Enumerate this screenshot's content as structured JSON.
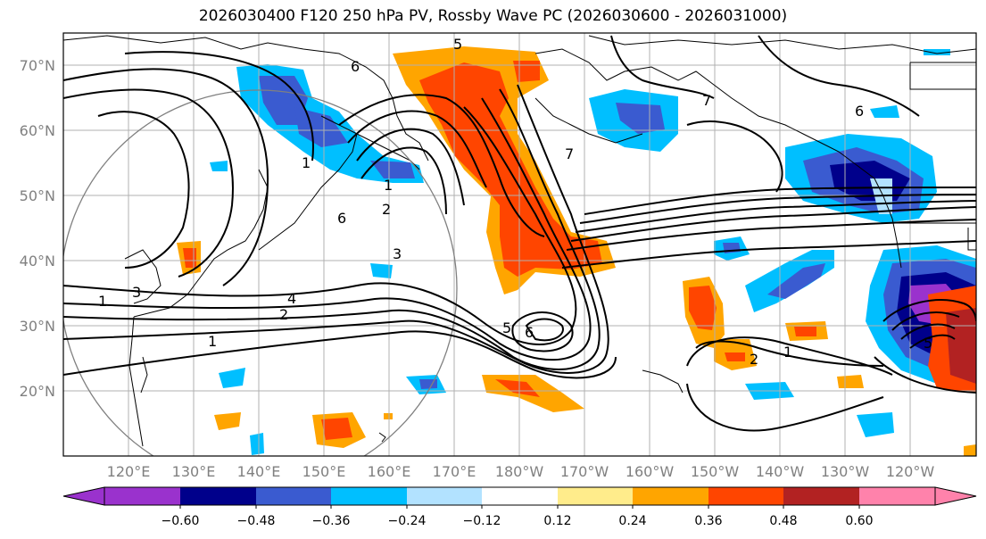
{
  "title": "2026030400 F120 250 hPa PV, Rossby Wave PC (2026030600 - 2026031000)",
  "lat_labels": [
    "70°N",
    "60°N",
    "50°N",
    "40°N",
    "30°N",
    "20°N"
  ],
  "lon_labels": [
    "120°E",
    "130°E",
    "140°E",
    "150°E",
    "160°E",
    "170°E",
    "180°W",
    "170°W",
    "160°W",
    "150°W",
    "140°W",
    "130°W",
    "120°W"
  ],
  "colorbar": {
    "colors": [
      "#9a32cd",
      "#00008b",
      "#3a5bd0",
      "#00bfff",
      "#b2e2ff",
      "#ffffff",
      "#ffec8b",
      "#ffa500",
      "#ff4500",
      "#b22222",
      "#ff82ab"
    ],
    "tick_labels": [
      "−0.60",
      "−0.48",
      "−0.36",
      "−0.24",
      "−0.12",
      "0.12",
      "0.24",
      "0.36",
      "0.48",
      "0.60"
    ]
  },
  "contour_labels": [
    "6",
    "5",
    "7",
    "6",
    "1",
    "2",
    "3",
    "3",
    "4",
    "2",
    "1",
    "1",
    "1",
    "6",
    "5",
    "6",
    "7",
    "2",
    "1",
    "5"
  ],
  "colors": {
    "contour": "#000000",
    "coast": "#000000",
    "grid": "#b0b0b0",
    "circle": "#808080"
  }
}
